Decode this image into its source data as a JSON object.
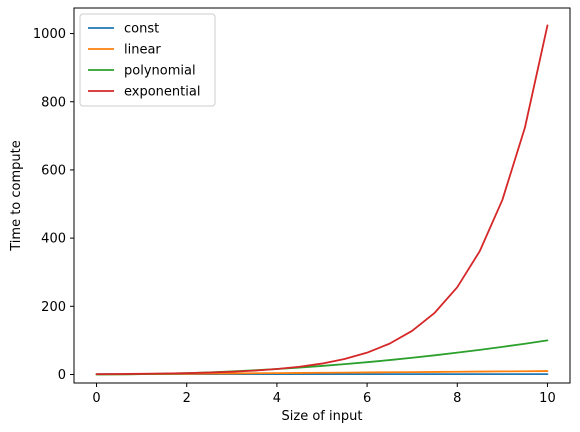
{
  "chart_data": {
    "type": "line",
    "title": "",
    "xlabel": "Size of input",
    "ylabel": "Time to compute",
    "xlim": [
      -0.5,
      10.5
    ],
    "ylim": [
      -25,
      1075
    ],
    "x_ticks": [
      0,
      2,
      4,
      6,
      8,
      10
    ],
    "y_ticks": [
      0,
      200,
      400,
      600,
      800,
      1000
    ],
    "grid": false,
    "legend_position": "top-left",
    "x": [
      0,
      0.5,
      1,
      1.5,
      2,
      2.5,
      3,
      3.5,
      4,
      4.5,
      5,
      5.5,
      6,
      6.5,
      7,
      7.5,
      8,
      8.5,
      9,
      9.5,
      10
    ],
    "series": [
      {
        "name": "const",
        "color": "#1f77b4",
        "values": [
          1,
          1,
          1,
          1,
          1,
          1,
          1,
          1,
          1,
          1,
          1,
          1,
          1,
          1,
          1,
          1,
          1,
          1,
          1,
          1,
          1
        ]
      },
      {
        "name": "linear",
        "color": "#ff7f0e",
        "values": [
          0,
          0.5,
          1,
          1.5,
          2,
          2.5,
          3,
          3.5,
          4,
          4.5,
          5,
          5.5,
          6,
          6.5,
          7,
          7.5,
          8,
          8.5,
          9,
          9.5,
          10
        ]
      },
      {
        "name": "polynomial",
        "color": "#2ca02c",
        "values": [
          0,
          0.25,
          1,
          2.25,
          4,
          6.25,
          9,
          12.25,
          16,
          20.25,
          25,
          30.25,
          36,
          42.25,
          49,
          56.25,
          64,
          72.25,
          81,
          90.25,
          100
        ]
      },
      {
        "name": "exponential",
        "color": "#d62728",
        "values": [
          1,
          1.41,
          2,
          2.83,
          4,
          5.66,
          8,
          11.31,
          16,
          22.63,
          32,
          45.25,
          64,
          90.51,
          128,
          181.02,
          256,
          362.04,
          512,
          724.08,
          1024
        ]
      }
    ]
  }
}
